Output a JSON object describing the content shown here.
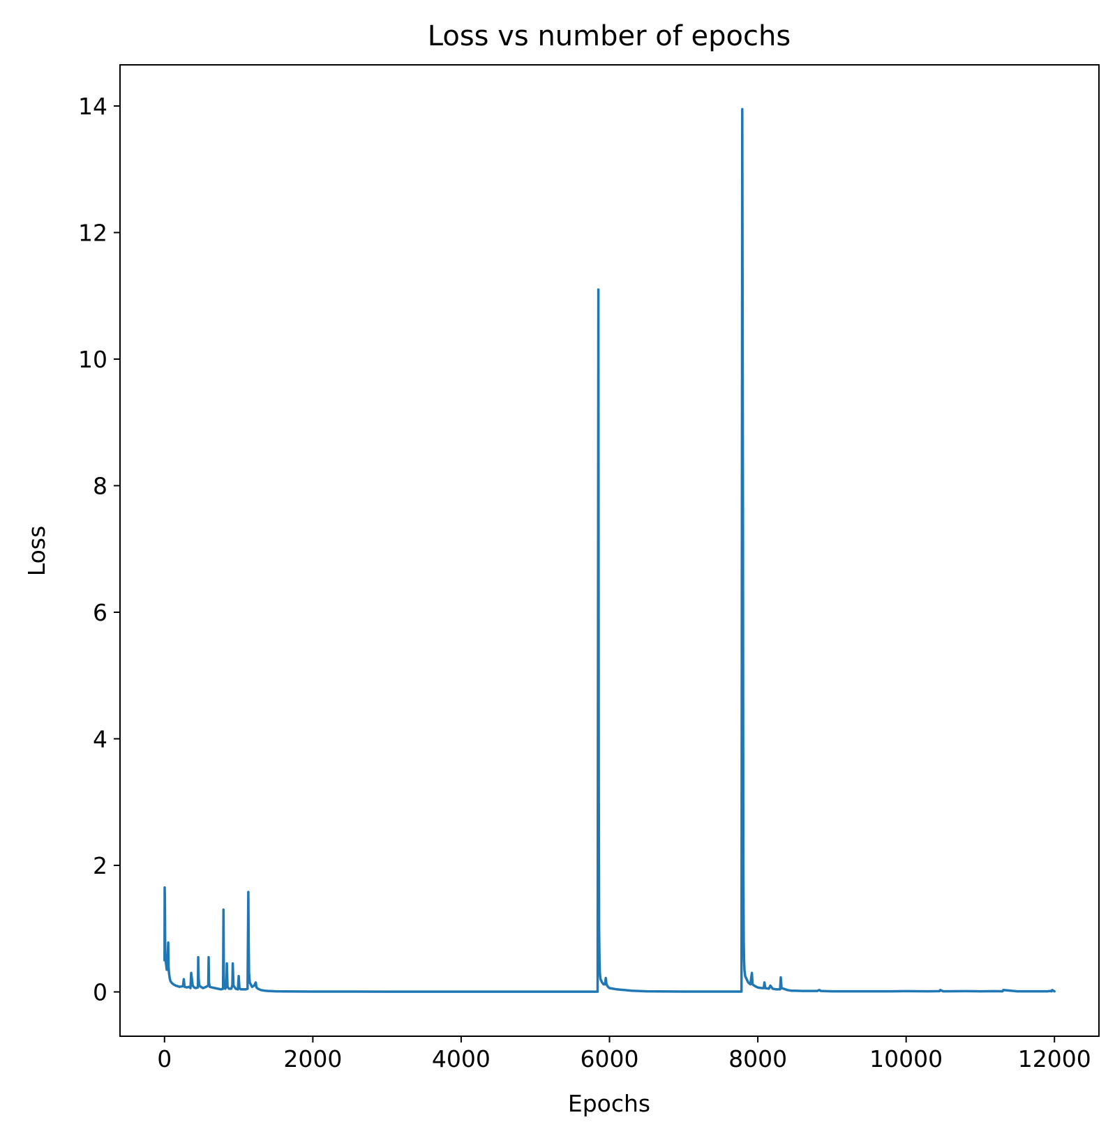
{
  "chart_data": {
    "type": "line",
    "title": "Loss vs number of epochs",
    "xlabel": "Epochs",
    "ylabel": "Loss",
    "xlim": [
      -600,
      12600
    ],
    "ylim": [
      -0.7,
      14.65
    ],
    "xticks": [
      0,
      2000,
      4000,
      6000,
      8000,
      10000,
      12000
    ],
    "xtick_labels": [
      "0",
      "2000",
      "4000",
      "6000",
      "8000",
      "10000",
      "12000"
    ],
    "yticks": [
      0,
      2,
      4,
      6,
      8,
      10,
      12,
      14
    ],
    "ytick_labels": [
      "0",
      "2",
      "4",
      "6",
      "8",
      "10",
      "12",
      "14"
    ],
    "grid": false,
    "legend": "none",
    "series": [
      {
        "color": "#1f77b4",
        "x": [
          0,
          2,
          5,
          10,
          20,
          30,
          40,
          50,
          55,
          60,
          70,
          80,
          100,
          120,
          150,
          180,
          200,
          250,
          260,
          270,
          300,
          330,
          350,
          360,
          380,
          400,
          420,
          450,
          455,
          460,
          470,
          490,
          520,
          560,
          590,
          595,
          600,
          610,
          640,
          680,
          720,
          760,
          790,
          795,
          800,
          805,
          820,
          835,
          840,
          850,
          870,
          900,
          915,
          920,
          930,
          960,
          990,
          1000,
          1010,
          1030,
          1060,
          1100,
          1120,
          1130,
          1135,
          1140,
          1150,
          1180,
          1210,
          1230,
          1240,
          1260,
          1300,
          1350,
          1400,
          1500,
          1600,
          1800,
          2000,
          2500,
          3000,
          3500,
          4000,
          4500,
          5000,
          5500,
          5800,
          5840,
          5850,
          5855,
          5860,
          5865,
          5870,
          5880,
          5900,
          5920,
          5940,
          5950,
          5960,
          5980,
          6000,
          6050,
          6100,
          6200,
          6300,
          6500,
          7000,
          7500,
          7780,
          7790,
          7800,
          7805,
          7810,
          7815,
          7820,
          7830,
          7850,
          7870,
          7900,
          7920,
          7930,
          7950,
          7980,
          8000,
          8050,
          8080,
          8090,
          8100,
          8150,
          8170,
          8200,
          8250,
          8300,
          8310,
          8320,
          8350,
          8400,
          8450,
          8500,
          8600,
          8800,
          8830,
          8850,
          9000,
          9200,
          9500,
          9800,
          10000,
          10300,
          10450,
          10460,
          10500,
          10800,
          11000,
          11200,
          11300,
          11310,
          11500,
          11800,
          11900,
          11950,
          11960,
          11970,
          12000
        ],
        "y": [
          0.5,
          1.65,
          1.5,
          0.6,
          0.45,
          0.35,
          0.5,
          0.78,
          0.4,
          0.3,
          0.22,
          0.17,
          0.14,
          0.12,
          0.1,
          0.09,
          0.08,
          0.09,
          0.2,
          0.08,
          0.07,
          0.08,
          0.06,
          0.3,
          0.1,
          0.07,
          0.06,
          0.07,
          0.55,
          0.2,
          0.1,
          0.08,
          0.06,
          0.08,
          0.1,
          0.55,
          0.15,
          0.08,
          0.07,
          0.06,
          0.05,
          0.04,
          0.05,
          1.3,
          0.3,
          0.06,
          0.05,
          0.1,
          0.45,
          0.08,
          0.05,
          0.05,
          0.1,
          0.45,
          0.1,
          0.05,
          0.04,
          0.25,
          0.06,
          0.04,
          0.04,
          0.04,
          0.05,
          1.58,
          0.8,
          0.3,
          0.15,
          0.08,
          0.1,
          0.15,
          0.07,
          0.05,
          0.03,
          0.02,
          0.015,
          0.01,
          0.008,
          0.006,
          0.005,
          0.005,
          0.004,
          0.004,
          0.004,
          0.004,
          0.004,
          0.004,
          0.004,
          0.004,
          11.1,
          3.5,
          1.0,
          0.5,
          0.3,
          0.2,
          0.15,
          0.12,
          0.12,
          0.22,
          0.12,
          0.08,
          0.06,
          0.05,
          0.04,
          0.03,
          0.02,
          0.01,
          0.005,
          0.005,
          0.005,
          13.95,
          7.5,
          2.0,
          0.8,
          0.5,
          0.35,
          0.25,
          0.2,
          0.15,
          0.12,
          0.3,
          0.12,
          0.1,
          0.08,
          0.07,
          0.06,
          0.06,
          0.15,
          0.06,
          0.05,
          0.1,
          0.05,
          0.04,
          0.04,
          0.23,
          0.06,
          0.05,
          0.03,
          0.02,
          0.02,
          0.015,
          0.015,
          0.03,
          0.015,
          0.01,
          0.01,
          0.01,
          0.01,
          0.012,
          0.01,
          0.012,
          0.03,
          0.01,
          0.012,
          0.01,
          0.012,
          0.01,
          0.03,
          0.01,
          0.01,
          0.01,
          0.015,
          0.01,
          0.03,
          0.01
        ]
      }
    ]
  }
}
